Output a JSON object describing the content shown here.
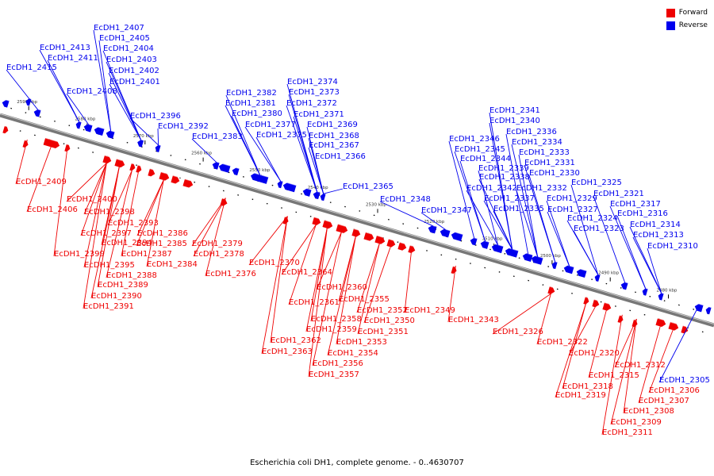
{
  "legend": {
    "forward_label": "Forward",
    "reverse_label": "Reverse",
    "forward_color": "#ee0000",
    "reverse_color": "#0000ee"
  },
  "caption": "Escherichia coli DH1, complete genome. - 0..4630707",
  "scale_labels": [
    "2590 kbp",
    "2580 kbp",
    "2570 kbp",
    "2560 kbp",
    "2550 kbp",
    "2540 kbp",
    "2530 kbp",
    "2520 kbp",
    "2510 kbp",
    "2500 kbp",
    "2490 kbp",
    "2480 kbp"
  ],
  "forward_genes": [
    "EcDH1_2409",
    "EcDH1_2406",
    "EcDH1_2400",
    "EcDH1_2398",
    "EcDH1_2393",
    "EcDH1_2397",
    "EcDH1_2394",
    "EcDH1_2386",
    "EcDH1_2399",
    "EcDH1_2385",
    "EcDH1_2387",
    "EcDH1_2395",
    "EcDH1_2384",
    "EcDH1_2388",
    "EcDH1_2389",
    "EcDH1_2390",
    "EcDH1_2391",
    "EcDH1_2379",
    "EcDH1_2378",
    "EcDH1_2376",
    "EcDH1_2370",
    "EcDH1_2364",
    "EcDH1_2360",
    "EcDH1_2361",
    "EcDH1_2355",
    "EcDH1_2352",
    "EcDH1_2349",
    "EcDH1_2358",
    "EcDH1_2350",
    "EcDH1_2359",
    "EcDH1_2351",
    "EcDH1_2362",
    "EcDH1_2353",
    "EcDH1_2363",
    "EcDH1_2354",
    "EcDH1_2356",
    "EcDH1_2357",
    "EcDH1_2343",
    "EcDH1_2326",
    "EcDH1_2322",
    "EcDH1_2320",
    "EcDH1_2312",
    "EcDH1_2315",
    "EcDH1_2318",
    "EcDH1_2319",
    "EcDH1_2306",
    "EcDH1_2307",
    "EcDH1_2308",
    "EcDH1_2309",
    "EcDH1_2311"
  ],
  "reverse_genes": [
    "EcDH1_2407",
    "EcDH1_2405",
    "EcDH1_2413",
    "EcDH1_2404",
    "EcDH1_2411",
    "EcDH1_2403",
    "EcDH1_2415",
    "EcDH1_2402",
    "EcDH1_2401",
    "EcDH1_2408",
    "EcDH1_2396",
    "EcDH1_2392",
    "EcDH1_2374",
    "EcDH1_2373",
    "EcDH1_2382",
    "EcDH1_2372",
    "EcDH1_2381",
    "EcDH1_2371",
    "EcDH1_2380",
    "EcDH1_2377",
    "EcDH1_2369",
    "EcDH1_2368",
    "EcDH1_2375",
    "EcDH1_2383",
    "EcDH1_2367",
    "EcDH1_2366",
    "EcDH1_2365",
    "EcDH1_2348",
    "EcDH1_2347",
    "EcDH1_2341",
    "EcDH1_2340",
    "EcDH1_2336",
    "EcDH1_2346",
    "EcDH1_2334",
    "EcDH1_2345",
    "EcDH1_2333",
    "EcDH1_2344",
    "EcDH1_2331",
    "EcDH1_2339",
    "EcDH1_2330",
    "EcDH1_2338",
    "EcDH1_2342",
    "EcDH1_2332",
    "EcDH1_2325",
    "EcDH1_2337",
    "EcDH1_2329",
    "EcDH1_2321",
    "EcDH1_2335",
    "EcDH1_2327",
    "EcDH1_2317",
    "EcDH1_2324",
    "EcDH1_2316",
    "EcDH1_2323",
    "EcDH1_2314",
    "EcDH1_2313",
    "EcDH1_2310",
    "EcDH1_2305"
  ]
}
